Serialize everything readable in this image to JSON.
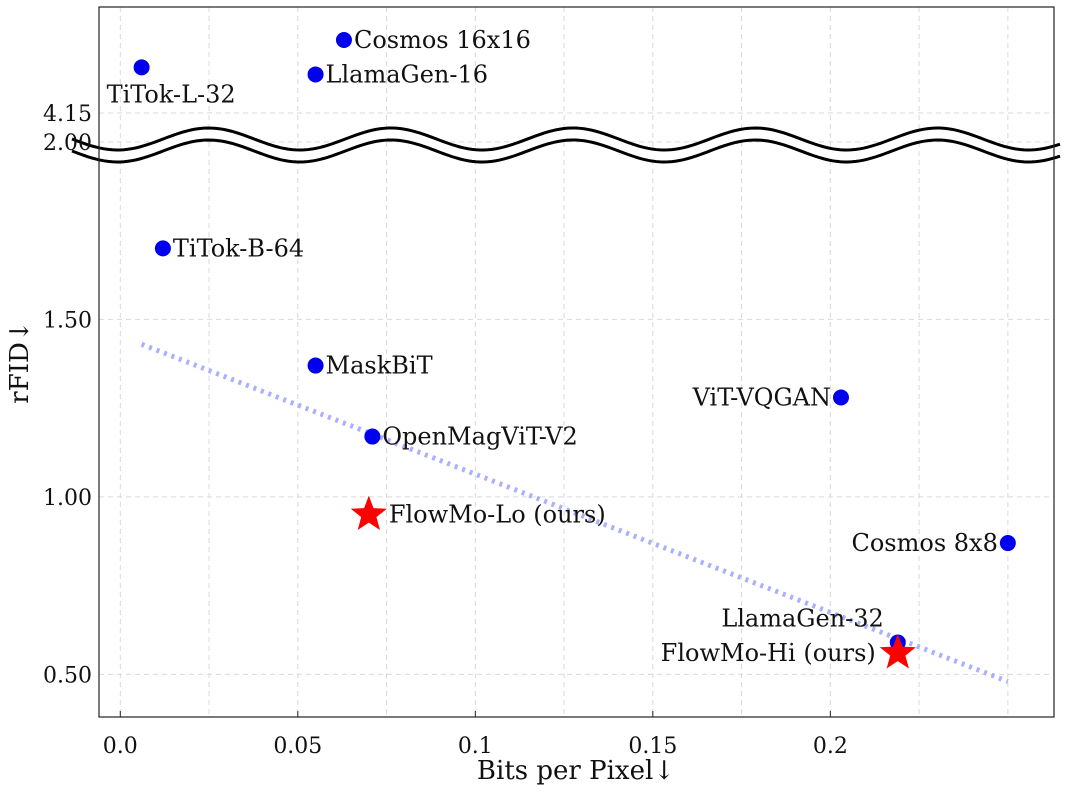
{
  "chart_data": {
    "type": "scatter",
    "title": "",
    "xlabel": "Bits per Pixel↓",
    "ylabel": "rFID↓",
    "xlim": [
      -0.006,
      0.263
    ],
    "ylim": [
      0.38,
      2.38
    ],
    "x_ticks": [
      {
        "value": 0.0,
        "label": "0.0"
      },
      {
        "value": 0.05,
        "label": "0.05"
      },
      {
        "value": 0.1,
        "label": "0.1"
      },
      {
        "value": 0.15,
        "label": "0.15"
      },
      {
        "value": 0.2,
        "label": "0.2"
      }
    ],
    "x_grid_minor": [
      0.025,
      0.075,
      0.125,
      0.175,
      0.225,
      0.25
    ],
    "y_ticks": [
      {
        "value": 0.5,
        "label": "0.50"
      },
      {
        "value": 1.0,
        "label": "1.00"
      },
      {
        "value": 1.5,
        "label": "1.50"
      },
      {
        "value": 2.0,
        "label": "2.00"
      }
    ],
    "y_break": {
      "label": "4.15"
    },
    "grid": true,
    "colors": {
      "baseline": "#0000ee",
      "ours": "#ff0000",
      "trend": "#aab0ff"
    },
    "trendline": {
      "x": [
        0.006,
        0.25
      ],
      "y": [
        1.43,
        0.48
      ]
    },
    "points": [
      {
        "label": "Cosmos 16x16",
        "x": 0.063,
        "y": 4.4,
        "marker": "circle",
        "label_pos": "right"
      },
      {
        "label": "TiTok-L-32",
        "x": 0.006,
        "y": 2.21,
        "marker": "circle",
        "label_pos": "below"
      },
      {
        "label": "LlamaGen-16",
        "x": 0.055,
        "y": 2.19,
        "marker": "circle",
        "label_pos": "right"
      },
      {
        "label": "TiTok-B-64",
        "x": 0.012,
        "y": 1.7,
        "marker": "circle",
        "label_pos": "right"
      },
      {
        "label": "MaskBiT",
        "x": 0.055,
        "y": 1.37,
        "marker": "circle",
        "label_pos": "right"
      },
      {
        "label": "ViT-VQGAN",
        "x": 0.203,
        "y": 1.28,
        "marker": "circle",
        "label_pos": "left"
      },
      {
        "label": "OpenMagViT-V2",
        "x": 0.071,
        "y": 1.17,
        "marker": "circle",
        "label_pos": "right"
      },
      {
        "label": "FlowMo-Lo (ours)",
        "x": 0.07,
        "y": 0.95,
        "marker": "star",
        "label_pos": "right"
      },
      {
        "label": "Cosmos 8x8",
        "x": 0.25,
        "y": 0.87,
        "marker": "circle",
        "label_pos": "left"
      },
      {
        "label": "LlamaGen-32",
        "x": 0.219,
        "y": 0.59,
        "marker": "circle",
        "label_pos": "above-left"
      },
      {
        "label": "FlowMo-Hi (ours)",
        "x": 0.219,
        "y": 0.56,
        "marker": "star",
        "label_pos": "left"
      }
    ]
  }
}
